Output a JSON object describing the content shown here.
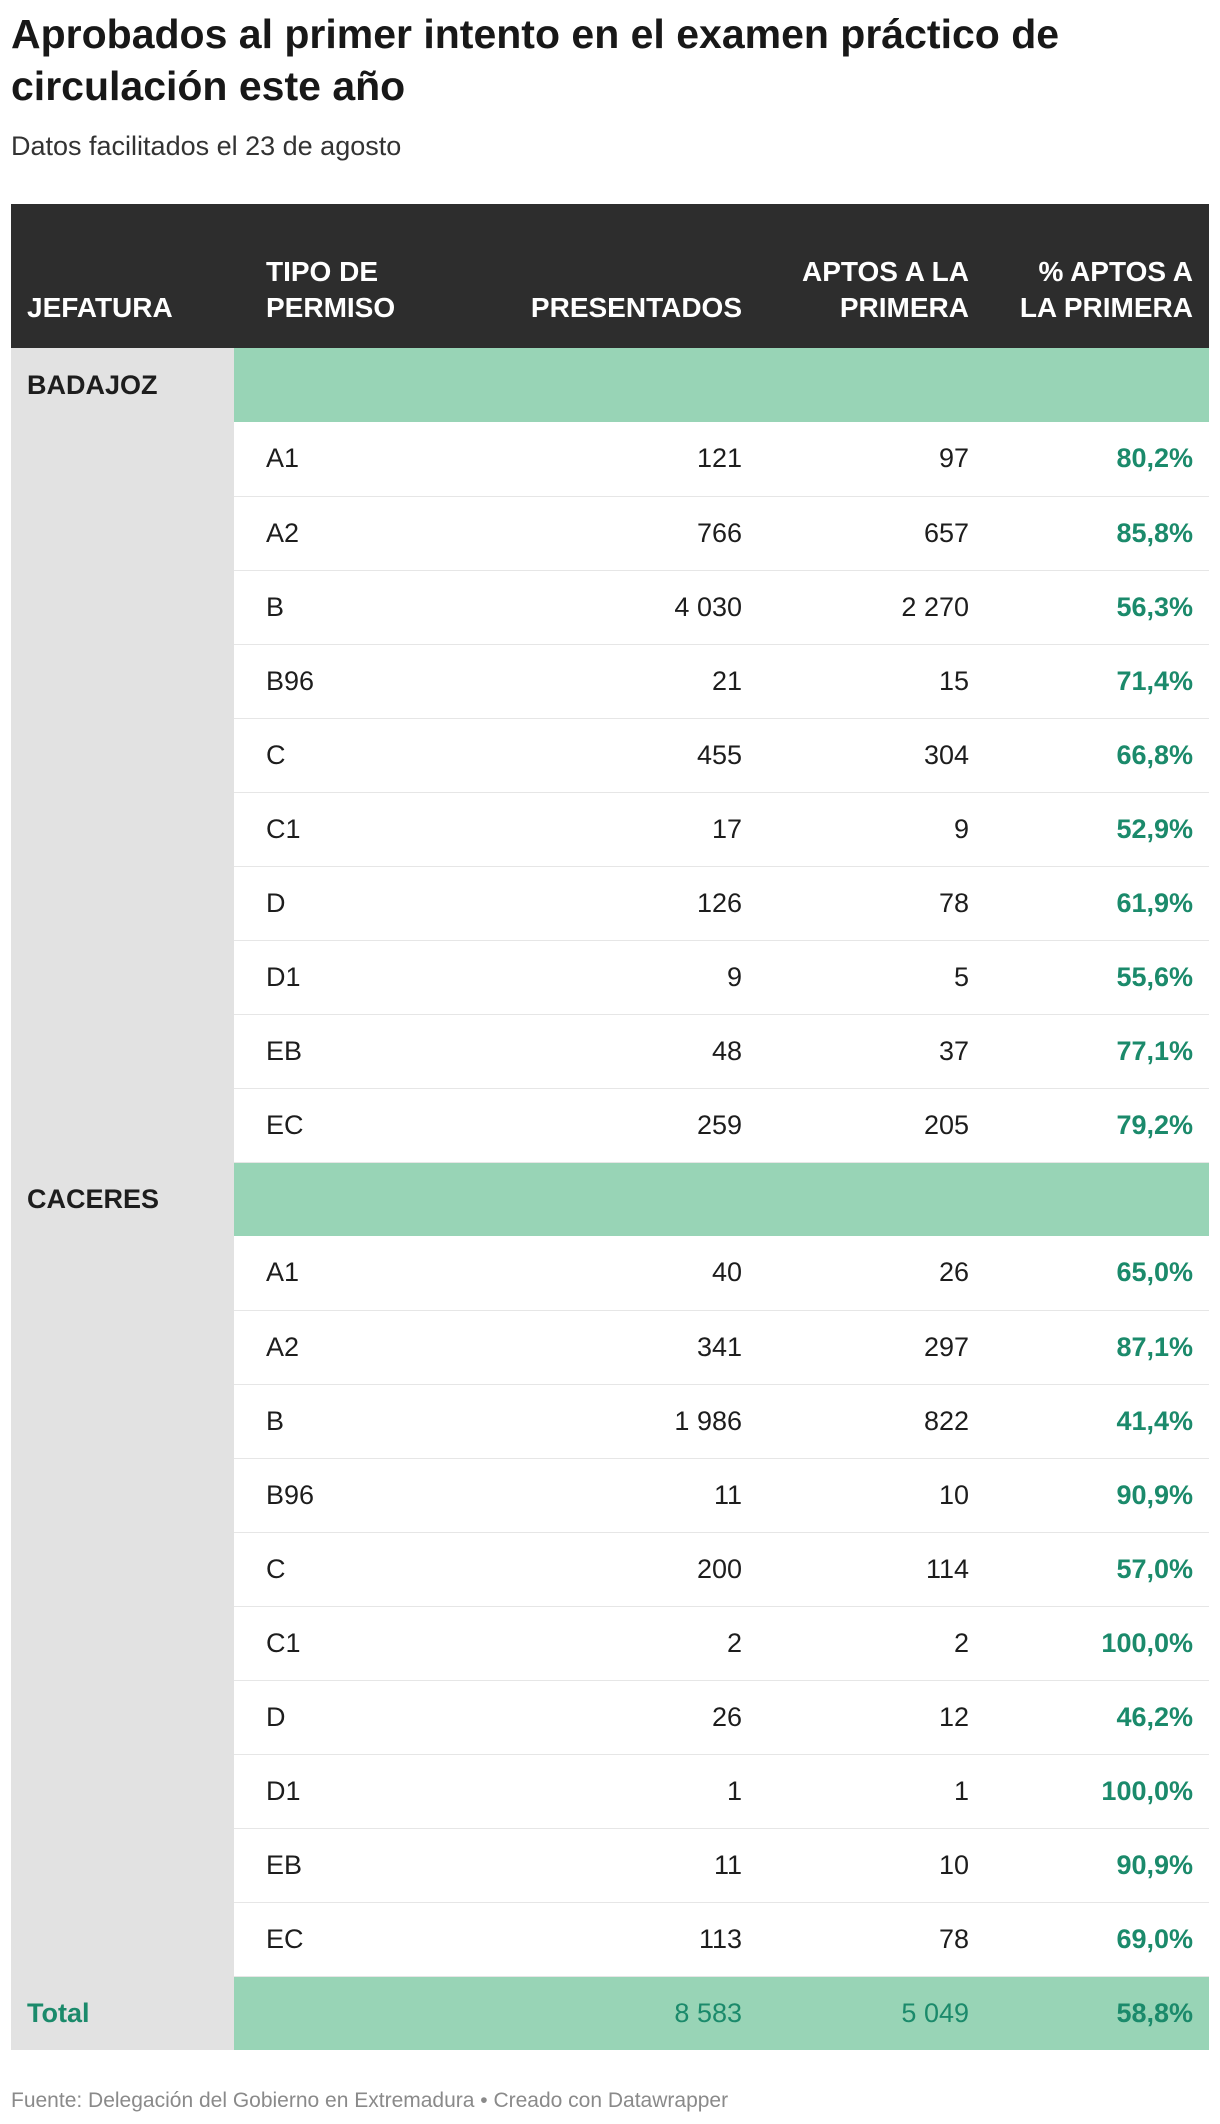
{
  "header": {
    "title": "Aprobados al primer intento en el examen práctico de circulación este año",
    "subtitle": "Datos facilitados el 23 de agosto"
  },
  "table": {
    "columns": [
      "JEFATURA",
      "TIPO DE PERMISO",
      "PRESENTADOS",
      "APTOS A LA PRIMERA",
      "% APTOS A LA PRIMERA"
    ],
    "groups": [
      {
        "jefatura": "BADAJOZ",
        "rows": [
          {
            "tipo": "A1",
            "presentados": "121",
            "aptos": "97",
            "pct": "80,2%"
          },
          {
            "tipo": "A2",
            "presentados": "766",
            "aptos": "657",
            "pct": "85,8%"
          },
          {
            "tipo": "B",
            "presentados": "4 030",
            "aptos": "2 270",
            "pct": "56,3%"
          },
          {
            "tipo": "B96",
            "presentados": "21",
            "aptos": "15",
            "pct": "71,4%"
          },
          {
            "tipo": "C",
            "presentados": "455",
            "aptos": "304",
            "pct": "66,8%"
          },
          {
            "tipo": "C1",
            "presentados": "17",
            "aptos": "9",
            "pct": "52,9%"
          },
          {
            "tipo": "D",
            "presentados": "126",
            "aptos": "78",
            "pct": "61,9%"
          },
          {
            "tipo": "D1",
            "presentados": "9",
            "aptos": "5",
            "pct": "55,6%"
          },
          {
            "tipo": "EB",
            "presentados": "48",
            "aptos": "37",
            "pct": "77,1%"
          },
          {
            "tipo": "EC",
            "presentados": "259",
            "aptos": "205",
            "pct": "79,2%"
          }
        ]
      },
      {
        "jefatura": "CACERES",
        "rows": [
          {
            "tipo": "A1",
            "presentados": "40",
            "aptos": "26",
            "pct": "65,0%"
          },
          {
            "tipo": "A2",
            "presentados": "341",
            "aptos": "297",
            "pct": "87,1%"
          },
          {
            "tipo": "B",
            "presentados": "1 986",
            "aptos": "822",
            "pct": "41,4%"
          },
          {
            "tipo": "B96",
            "presentados": "11",
            "aptos": "10",
            "pct": "90,9%"
          },
          {
            "tipo": "C",
            "presentados": "200",
            "aptos": "114",
            "pct": "57,0%"
          },
          {
            "tipo": "C1",
            "presentados": "2",
            "aptos": "2",
            "pct": "100,0%"
          },
          {
            "tipo": "D",
            "presentados": "26",
            "aptos": "12",
            "pct": "46,2%"
          },
          {
            "tipo": "D1",
            "presentados": "1",
            "aptos": "1",
            "pct": "100,0%"
          },
          {
            "tipo": "EB",
            "presentados": "11",
            "aptos": "10",
            "pct": "90,9%"
          },
          {
            "tipo": "EC",
            "presentados": "113",
            "aptos": "78",
            "pct": "69,0%"
          }
        ]
      }
    ],
    "total": {
      "label": "Total",
      "presentados": "8 583",
      "aptos": "5 049",
      "pct": "58,8%"
    }
  },
  "footer": {
    "source": "Fuente: Delegación del Gobierno en Extremadura • Creado con Datawrapper"
  },
  "colors": {
    "header_bg": "#2d2d2d",
    "group_band": "#98d4b6",
    "side_column": "#e2e2e2",
    "accent_text": "#1b8a6b"
  },
  "chart_data": {
    "type": "table",
    "title": "Aprobados al primer intento en el examen práctico de circulación este año",
    "subtitle": "Datos facilitados el 23 de agosto",
    "columns": [
      "JEFATURA",
      "TIPO DE PERMISO",
      "PRESENTADOS",
      "APTOS A LA PRIMERA",
      "% APTOS A LA PRIMERA"
    ],
    "rows": [
      [
        "BADAJOZ",
        "A1",
        121,
        97,
        80.2
      ],
      [
        "BADAJOZ",
        "A2",
        766,
        657,
        85.8
      ],
      [
        "BADAJOZ",
        "B",
        4030,
        2270,
        56.3
      ],
      [
        "BADAJOZ",
        "B96",
        21,
        15,
        71.4
      ],
      [
        "BADAJOZ",
        "C",
        455,
        304,
        66.8
      ],
      [
        "BADAJOZ",
        "C1",
        17,
        9,
        52.9
      ],
      [
        "BADAJOZ",
        "D",
        126,
        78,
        61.9
      ],
      [
        "BADAJOZ",
        "D1",
        9,
        5,
        55.6
      ],
      [
        "BADAJOZ",
        "EB",
        48,
        37,
        77.1
      ],
      [
        "BADAJOZ",
        "EC",
        259,
        205,
        79.2
      ],
      [
        "CACERES",
        "A1",
        40,
        26,
        65.0
      ],
      [
        "CACERES",
        "A2",
        341,
        297,
        87.1
      ],
      [
        "CACERES",
        "B",
        1986,
        822,
        41.4
      ],
      [
        "CACERES",
        "B96",
        11,
        10,
        90.9
      ],
      [
        "CACERES",
        "C",
        200,
        114,
        57.0
      ],
      [
        "CACERES",
        "C1",
        2,
        2,
        100.0
      ],
      [
        "CACERES",
        "D",
        26,
        12,
        46.2
      ],
      [
        "CACERES",
        "D1",
        1,
        1,
        100.0
      ],
      [
        "CACERES",
        "EB",
        11,
        10,
        90.9
      ],
      [
        "CACERES",
        "EC",
        113,
        78,
        69.0
      ]
    ],
    "total": [
      "Total",
      "",
      8583,
      5049,
      58.8
    ]
  }
}
